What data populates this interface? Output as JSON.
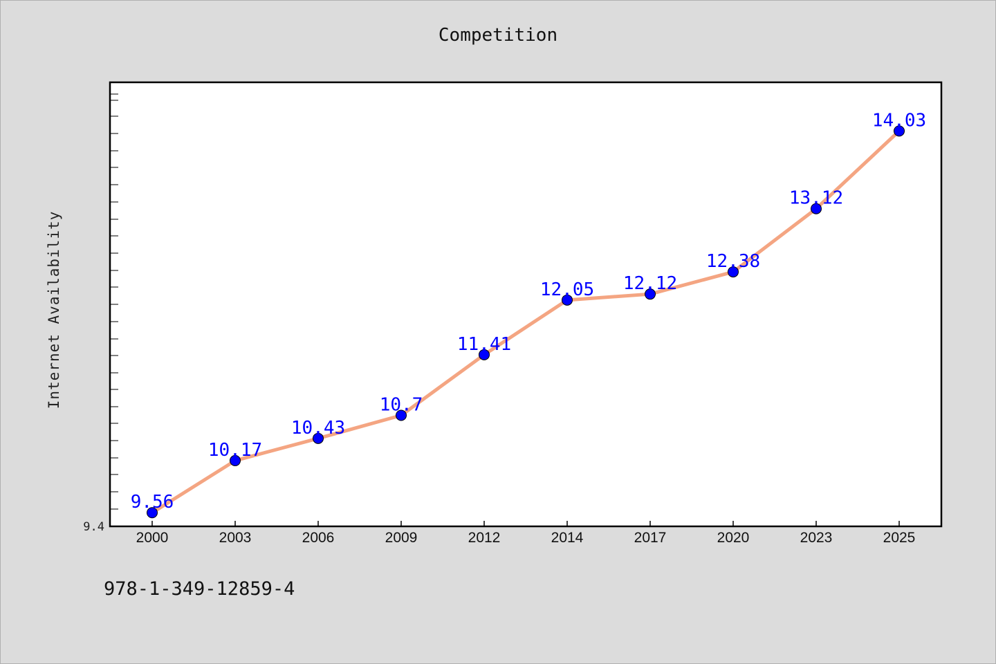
{
  "chart_data": {
    "type": "line",
    "title": "Competition",
    "xlabel": "",
    "ylabel": "Internet Availability",
    "categories": [
      "2000",
      "2003",
      "2006",
      "2009",
      "2012",
      "2014",
      "2017",
      "2020",
      "2023",
      "2025"
    ],
    "values": [
      9.56,
      10.17,
      10.43,
      10.7,
      11.41,
      12.05,
      12.12,
      12.38,
      13.12,
      14.03
    ],
    "data_labels": [
      "9.56",
      "10.17",
      "10.43",
      "10.7",
      "11.41",
      "12.05",
      "12.12",
      "12.38",
      "13.12",
      "14.03"
    ],
    "ylim": [
      9.4,
      14.6
    ],
    "y_tick_label": "9.4",
    "grid": false,
    "colors": {
      "line": "#f4a582",
      "marker": "#0000ff",
      "label": "#0000ff"
    }
  },
  "footer": {
    "isbn": "978-1-349-12859-4"
  }
}
